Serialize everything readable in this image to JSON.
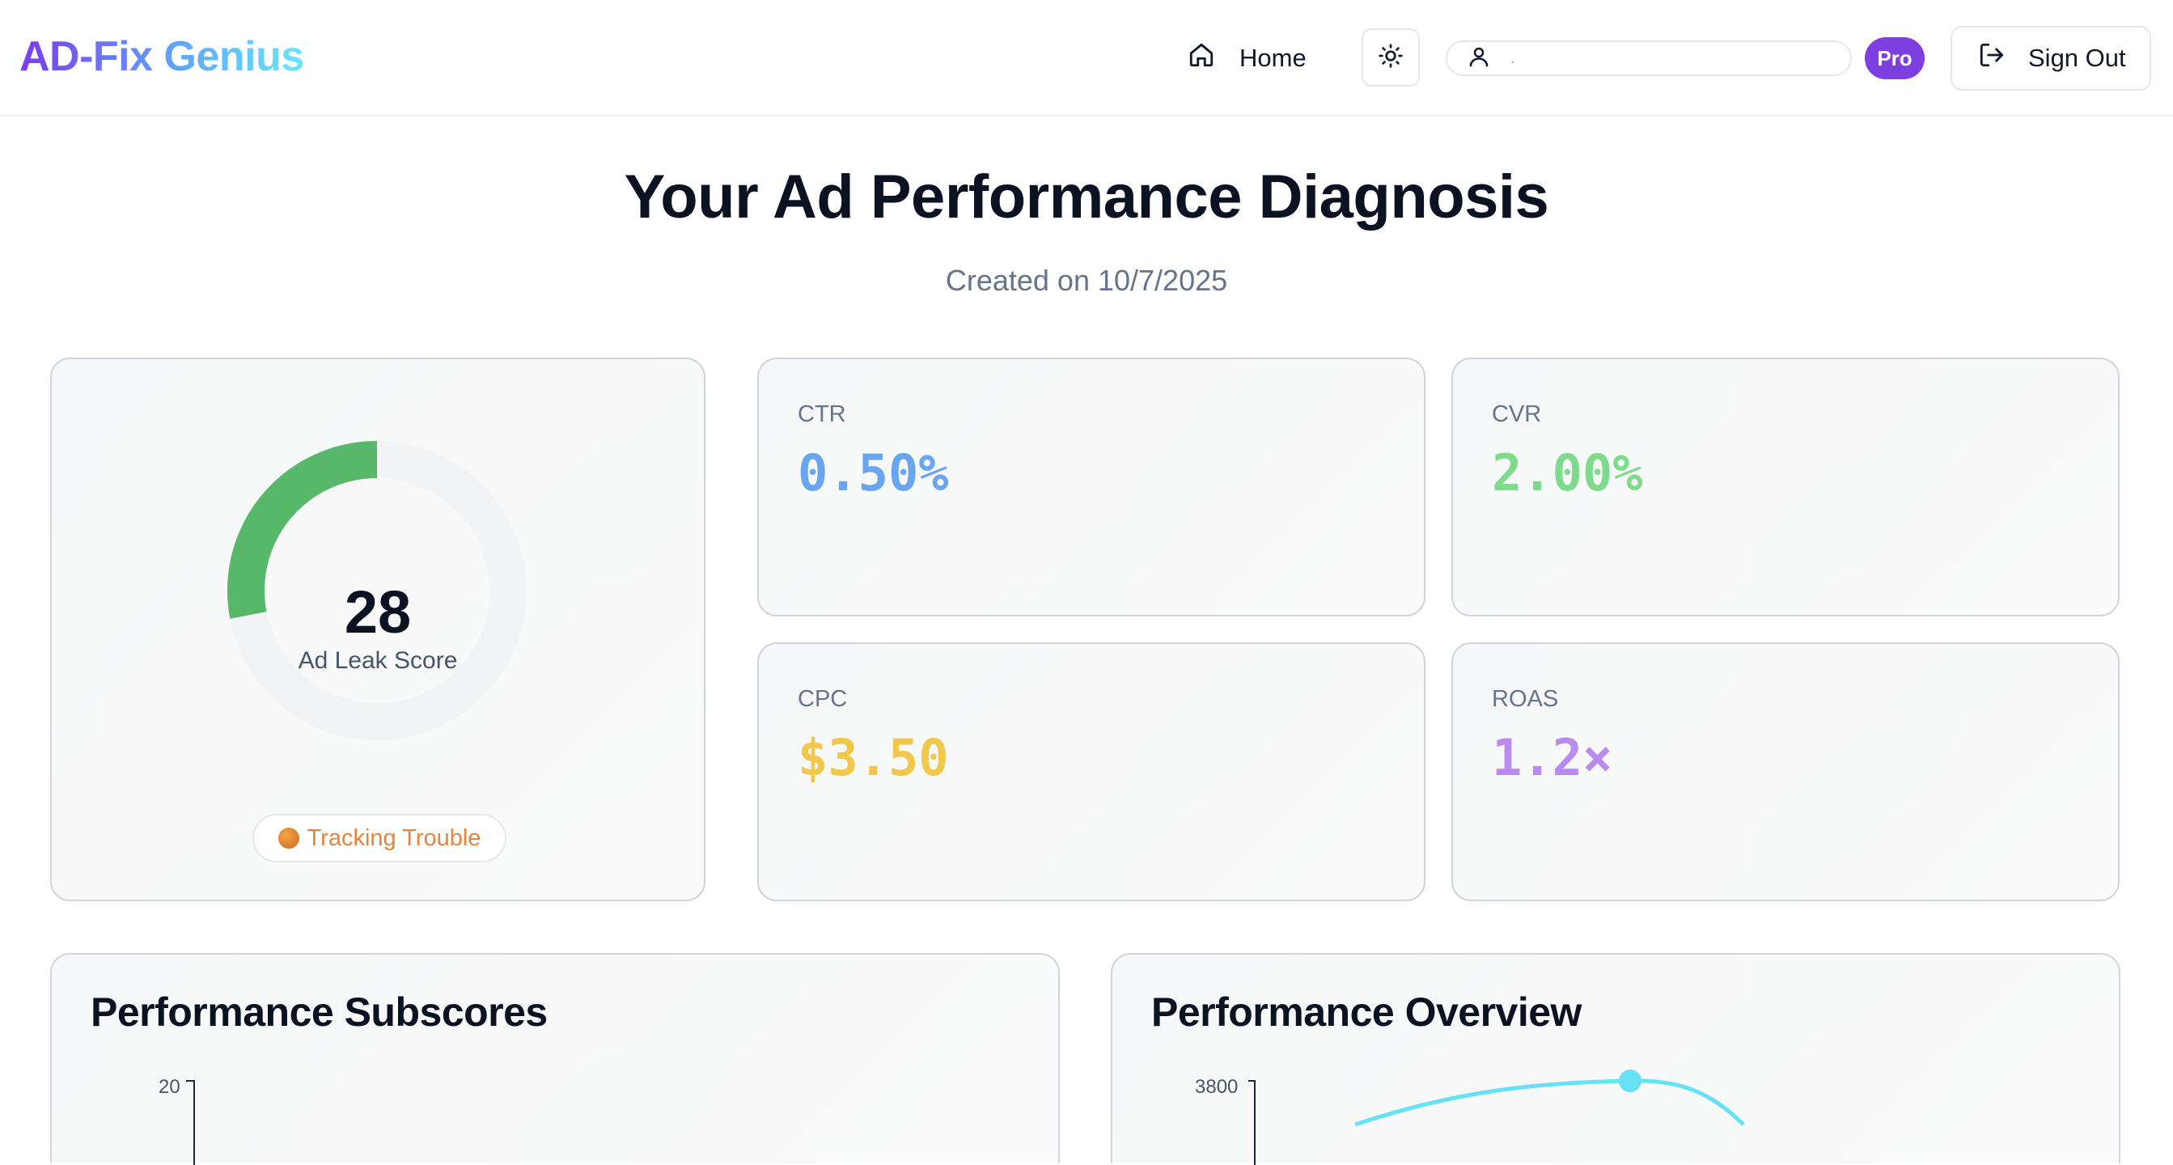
{
  "header": {
    "logo": "AD-Fix Genius",
    "home_label": "Home",
    "user_email": ".",
    "plan_badge": "Pro",
    "signout_label": "Sign Out"
  },
  "page": {
    "title": "Your Ad Performance Diagnosis",
    "created": "Created on 10/7/2025"
  },
  "score": {
    "value": "28",
    "fraction": 0.28,
    "label": "Ad Leak Score",
    "status": "Tracking Trouble"
  },
  "metrics": {
    "ctr": {
      "label": "CTR",
      "value": "0.50%"
    },
    "cvr": {
      "label": "CVR",
      "value": "2.00%"
    },
    "cpc": {
      "label": "CPC",
      "value": "$3.50"
    },
    "roas": {
      "label": "ROAS",
      "value": "1.2×"
    }
  },
  "colors": {
    "ctr": "#6aa6f0",
    "cvr": "#7edb8c",
    "cpc": "#f2c84b",
    "roas": "#b98af0",
    "gauge_fill": "#57b86a",
    "gauge_track": "#f1f3f5",
    "line": "#67e1f5"
  },
  "panels": {
    "subscores": {
      "title": "Performance Subscores",
      "y_tick_top": "20"
    },
    "overview": {
      "title": "Performance Overview",
      "y_tick_top": "3800"
    }
  },
  "icons": {
    "home": "home-icon",
    "theme": "sun-icon",
    "user": "user-icon",
    "signout": "sign-out-icon"
  }
}
